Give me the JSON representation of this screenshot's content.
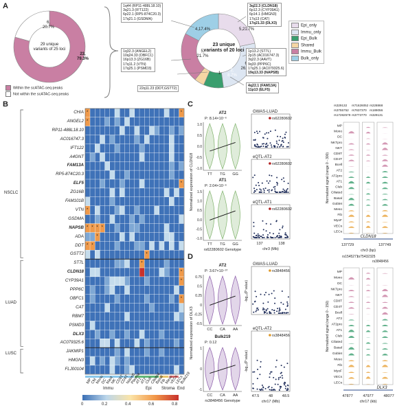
{
  "panelA": {
    "label": "A",
    "left_donut": {
      "center": "29 unique variants of 25 loci",
      "slices": [
        {
          "count": "23,",
          "pct": "79.3%",
          "value": 23,
          "color": "#c97fa3"
        },
        {
          "count": "6,",
          "pct": "20.7%",
          "value": 6,
          "color": "#ffffff"
        }
      ],
      "legend": [
        "Within the scATAC-seq peaks",
        "Not within the scATAC-seq peaks"
      ]
    },
    "right_donut": {
      "center": "23 unique variants of 20 loci",
      "slices": [
        {
          "label": "5,21.7%",
          "value": 5,
          "color": "#e8dcec"
        },
        {
          "label": "6, 26.1%",
          "value": 6,
          "color": "#dde6f2"
        },
        {
          "label": "2, 8.7%",
          "value": 2,
          "color": "#3a9e6e"
        },
        {
          "label": "1",
          "value": 1,
          "color": "#f5d6a4"
        },
        {
          "label": "5, 21.7%",
          "value": 5,
          "color": "#c97fa3"
        },
        {
          "label": "4,17.4%",
          "value": 4,
          "color": "#9ecfe6"
        }
      ],
      "legend": [
        "Epi_only",
        "Immu_only",
        "Epi_Bulk",
        "Shared",
        "Immu_Bulk",
        "Bulk_only"
      ],
      "boxes": {
        "bulk_only": [
          "1q44 (RP11-488L18.10)",
          "3q21.3 (IFT122)",
          "6p22.1 (RP5-874C20.3)",
          "17q21.1 (GSDMA)"
        ],
        "immu_bulk": [
          "1q32.3 (ANGEL2)",
          "10q24.33 (OBFC1)",
          "16p13.3 (ZG16B)",
          "17q11.2 (VTN)",
          "17q25.1 (PSMD3)"
        ],
        "shared": [
          "22q11.23 (DDT,GSTT2)"
        ],
        "epi_only_plain": [
          "6p12.3 (CYP39A1)",
          "6p14.1 (HMGN3)",
          "17q13 (CAT)"
        ],
        "epi_only_bold": [
          "3q22.3 (CLDN18)",
          "17q21.33 (DLX3)"
        ],
        "immu_only_plain": [
          "1p13.2 (ST7L)",
          "2p15 (AC016747.3)",
          "3q22.3 (AAVT)",
          "9q33 (PPP6C)",
          "17q25.1 (AC079325.6)"
        ],
        "immu_only_bold": [
          "19q13.33 (NAPSB)"
        ],
        "epi_bulk": [
          "4q22.1 (FAM13A)",
          "11p13 (ELF5)"
        ]
      }
    }
  },
  "panelB": {
    "label": "B",
    "genes": [
      "CHIA",
      "ANGEL2",
      "RP11-488L18.10",
      "AC016747.3",
      "IFT122",
      "A4GNT",
      "FAM13A",
      "RP5-874C20.3",
      "ELF5",
      "ZG16B",
      "FAM101B",
      "VTN",
      "GSDMA",
      "NAPSB",
      "ADA",
      "DDT",
      "GSTT2",
      "ST7L",
      "CLDN18",
      "CYP39A1",
      "PPP6C",
      "OBFC1",
      "CAT",
      "RBM7",
      "PSMD3",
      "DLX3",
      "AC079325.6",
      "JAKMIP1",
      "HMGN3",
      "FLJ00104"
    ],
    "bold_genes": [
      "FAM13A",
      "ELF5",
      "NAPSB",
      "CLDN18",
      "DLX3"
    ],
    "cells": [
      "MP",
      "CM",
      "Mono",
      "DC",
      "Mast",
      "NK",
      "CD8T",
      "CD4T",
      "NaiveB",
      "Plasma",
      "AT1",
      "AT2",
      "Club",
      "Ciliated",
      "Basal",
      "Fib",
      "Meso",
      "VECs",
      "LECs",
      "Bulk219"
    ],
    "groups": [
      "NSCLC",
      "LUAD",
      "LUSC"
    ],
    "categories": [
      "Immu",
      "Epi",
      "Stroma",
      "End"
    ],
    "colorbar": [
      "0",
      "0.2",
      "0.4",
      "0.6",
      "0.8"
    ]
  },
  "panelC": {
    "label": "C",
    "ylabel": "Normalized expression of CLDN18",
    "violin1": {
      "title": "AT2",
      "p": "P: 8.14×10⁻⁶"
    },
    "violin2": {
      "title": "AT1",
      "p": "P: 2.04×10⁻⁶"
    },
    "genotypes": [
      "TT",
      "TG",
      "GG"
    ],
    "xlab": "rs62280602 Genotype",
    "yt1": [
      "1.0",
      "0.5",
      "0.0",
      "-0.5",
      "-1.0"
    ],
    "yt2": [
      "1.5",
      "1.0",
      "0.5",
      "0.0",
      "-0.5",
      "-1.0"
    ],
    "m1": "GWAS-LUAD",
    "m2": "eQTL-AT2",
    "m3": "eQTL-AT1",
    "snp": "rs62280602",
    "mx": [
      "137",
      "138"
    ],
    "mxlab": "chr3 (Mb)",
    "track_ylab": "Normalized signal (range 0 - 300)",
    "track_snps": [
      "rs329132",
      "rs71626052",
      "rs228868",
      "rs3755752",
      "rs7637370",
      "rs189056",
      "rs17282579",
      "rs3773770",
      "rs329131"
    ],
    "tx": [
      "137729",
      "137749"
    ],
    "txlab": "chr3 (bp)",
    "gene": "CLDN18"
  },
  "panelD": {
    "label": "D",
    "ylabel": "Normalized expression of DLX3",
    "violin1": {
      "title": "AT2",
      "p": "P: 3.67×10⁻³⁷"
    },
    "violin2": {
      "title": "Bulk219",
      "p": "P: 0.12"
    },
    "genotypes": [
      "CC",
      "CA",
      "AA"
    ],
    "xlab": "rs3848456 Genotype",
    "yt1": [
      "0.75",
      "0.5",
      "0.25",
      "0",
      "-0.25",
      "-0.5"
    ],
    "yt2": [
      "1",
      "0",
      "-1"
    ],
    "m1": "GWAS-LUAD",
    "m2": "eQTL-AT2",
    "snp": "rs3848456",
    "m1y": "-log₁₀(P value)",
    "mx": [
      "47.5",
      "48",
      "48.5"
    ],
    "mxlab": "chr17 (Mb)",
    "track_ylab": "Normalized signal (range 0 - 150)",
    "track_snps": [
      "rs1545271",
      "rs75432325",
      "rs3848456"
    ],
    "tx": [
      "47877",
      "47977",
      "48077"
    ],
    "txlab": "chr17 (kb)",
    "gene": "DLX3"
  },
  "tracks": [
    "MP",
    "Mono",
    "DC",
    "NKTpro",
    "NKT",
    "CD8T",
    "CD4T",
    "Bcell",
    "AT2",
    "AT2pro",
    "AT1",
    "Club",
    "Ciliated",
    "Basal",
    "Goblet",
    "Meso",
    "Fib",
    "MyoF",
    "VECs",
    "LECs"
  ],
  "colors": {
    "immu": "#c97fa3",
    "epi": "#3a9e6e",
    "heat_lo": "#3a6fb5",
    "heat_hi": "#c8312c"
  }
}
